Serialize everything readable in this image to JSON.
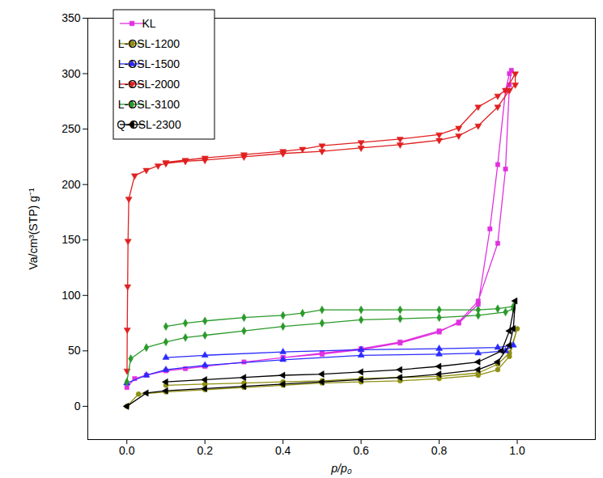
{
  "chart_data": {
    "type": "line",
    "xlabel": "p/p₀",
    "ylabel": "Va/cm³(STP) g⁻¹",
    "xlim": [
      -0.1,
      1.2
    ],
    "ylim": [
      -30,
      350
    ],
    "xticks": [
      {
        "value": 0,
        "label": "0.0"
      },
      {
        "value": 0.2,
        "label": "0.2"
      },
      {
        "value": 0.4,
        "label": "0.4"
      },
      {
        "value": 0.6,
        "label": "0.6"
      },
      {
        "value": 0.8,
        "label": "0.8"
      },
      {
        "value": 1,
        "label": "1.0"
      }
    ],
    "yticks": [
      0,
      50,
      100,
      150,
      200,
      250,
      300,
      350
    ],
    "grid": false,
    "legend": "top-left",
    "series": [
      {
        "name": "KL",
        "color": "#e030e0",
        "marker": "square",
        "x": [
          0.0,
          0.02,
          0.05,
          0.1,
          0.15,
          0.2,
          0.3,
          0.4,
          0.5,
          0.6,
          0.7,
          0.8,
          0.85,
          0.9,
          0.95,
          0.97,
          0.98,
          0.985,
          0.98,
          0.97,
          0.95,
          0.93,
          0.9,
          0.85,
          0.8,
          0.7,
          0.6,
          0.5,
          0.4
        ],
        "values": [
          17,
          25,
          28,
          32,
          34,
          36,
          40,
          44,
          47,
          51,
          57,
          67,
          76,
          95,
          147,
          214,
          290,
          303,
          300,
          285,
          218,
          160,
          92,
          75,
          68,
          58,
          52,
          48,
          44
        ]
      },
      {
        "name": "L-OSL-1200",
        "color": "#8f8f10",
        "marker": "circle",
        "x": [
          0.0,
          0.03,
          0.1,
          0.2,
          0.3,
          0.4,
          0.5,
          0.6,
          0.7,
          0.8,
          0.9,
          0.95,
          0.98,
          1.0,
          0.98,
          0.95,
          0.9,
          0.8,
          0.7,
          0.6,
          0.5,
          0.4,
          0.3,
          0.2,
          0.1
        ],
        "values": [
          0,
          11,
          13,
          15,
          17,
          19,
          21,
          22,
          23,
          25,
          28,
          33,
          45,
          70,
          48,
          38,
          30,
          27,
          26,
          25,
          23,
          22,
          21,
          20,
          19
        ]
      },
      {
        "name": "L-OSL-1500",
        "color": "#2a2aff",
        "marker": "triangle",
        "x": [
          0.0,
          0.05,
          0.1,
          0.2,
          0.4,
          0.6,
          0.8,
          0.9,
          0.97,
          0.99,
          0.95,
          0.8,
          0.6,
          0.4,
          0.2,
          0.1
        ],
        "values": [
          21,
          28,
          33,
          37,
          42,
          46,
          47,
          48,
          50,
          55,
          53,
          52,
          51,
          49,
          46,
          44
        ]
      },
      {
        "name": "L-OSL-2000",
        "color": "#e02020",
        "marker": "triangle-down",
        "x": [
          0.0005,
          0.001,
          0.002,
          0.003,
          0.005,
          0.02,
          0.05,
          0.08,
          0.1,
          0.15,
          0.2,
          0.3,
          0.4,
          0.5,
          0.6,
          0.7,
          0.8,
          0.85,
          0.9,
          0.95,
          0.98,
          0.995,
          0.995,
          0.97,
          0.95,
          0.9,
          0.85,
          0.8,
          0.7,
          0.6,
          0.5,
          0.45,
          0.4,
          0.3,
          0.2,
          0.15,
          0.1
        ],
        "values": [
          32,
          69,
          108,
          149,
          187,
          208,
          213,
          217,
          219,
          221,
          222,
          225,
          228,
          230,
          233,
          236,
          240,
          244,
          253,
          270,
          285,
          290,
          300,
          285,
          280,
          270,
          251,
          245,
          241,
          238,
          235,
          232,
          230,
          227,
          224,
          222,
          220
        ]
      },
      {
        "name": "L-OSL-3100",
        "color": "#2a9a2a",
        "marker": "diamond",
        "x": [
          0.0,
          0.01,
          0.05,
          0.1,
          0.15,
          0.2,
          0.3,
          0.4,
          0.5,
          0.6,
          0.7,
          0.8,
          0.9,
          0.97,
          0.99,
          0.99,
          0.95,
          0.9,
          0.8,
          0.7,
          0.6,
          0.5,
          0.45,
          0.4,
          0.3,
          0.2,
          0.15,
          0.1
        ],
        "values": [
          22,
          43,
          53,
          58,
          62,
          64,
          68,
          72,
          75,
          78,
          79,
          80,
          82,
          85,
          88,
          90,
          88,
          87,
          87,
          87,
          87,
          87,
          84,
          82,
          80,
          77,
          75,
          72
        ]
      },
      {
        "name": "Q-OSL-2300",
        "color": "#000000",
        "marker": "triangle-left",
        "x": [
          0.0,
          0.05,
          0.1,
          0.2,
          0.3,
          0.4,
          0.5,
          0.6,
          0.7,
          0.8,
          0.9,
          0.95,
          0.98,
          0.99,
          0.995,
          0.98,
          0.96,
          0.9,
          0.8,
          0.7,
          0.6,
          0.5,
          0.4,
          0.3,
          0.2,
          0.1
        ],
        "values": [
          0,
          12,
          14,
          16,
          18,
          20,
          22,
          24,
          26,
          29,
          33,
          40,
          55,
          70,
          95,
          68,
          50,
          40,
          36,
          33,
          31,
          29,
          28,
          26,
          24,
          22
        ]
      }
    ]
  }
}
